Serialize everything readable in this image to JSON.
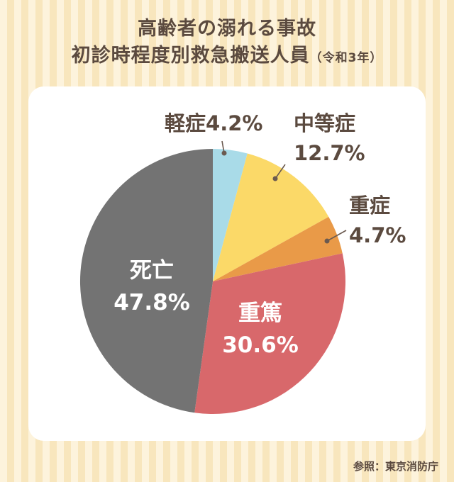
{
  "title": {
    "line1": "高齢者の溺れる事故",
    "line2": "初診時程度別救急搬送人員",
    "note": "（令和3年）"
  },
  "source": "参照：東京消防庁",
  "chart_data": {
    "type": "pie",
    "start": "top",
    "direction": "clockwise",
    "slices": [
      {
        "label": "軽症",
        "value": 4.2,
        "value_text": "4.2%",
        "color": "#a9dbe8",
        "label_position": "outside"
      },
      {
        "label": "中等症",
        "value": 12.7,
        "value_text": "12.7%",
        "color": "#fbd968",
        "label_position": "outside"
      },
      {
        "label": "重症",
        "value": 4.7,
        "value_text": "4.7%",
        "color": "#e99a48",
        "label_position": "outside"
      },
      {
        "label": "重篤",
        "value": 30.6,
        "value_text": "30.6%",
        "color": "#d8686b",
        "label_position": "inside"
      },
      {
        "label": "死亡",
        "value": 47.8,
        "value_text": "47.8%",
        "color": "#737373",
        "label_position": "inside"
      }
    ]
  }
}
